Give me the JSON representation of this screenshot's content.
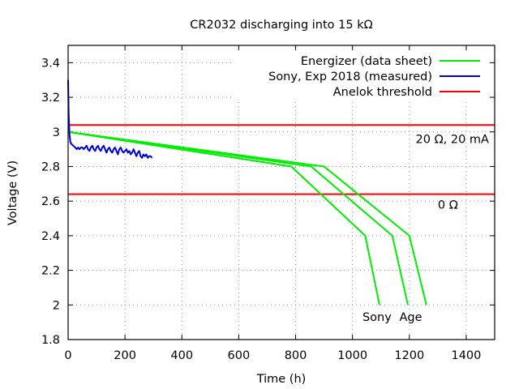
{
  "chart_data": {
    "type": "line",
    "title": "CR2032 discharging into 15 kΩ",
    "xlabel": "Time (h)",
    "ylabel": "Voltage (V)",
    "xlim": [
      0,
      1500
    ],
    "ylim": [
      1.8,
      3.5
    ],
    "xticks": [
      0,
      200,
      400,
      600,
      800,
      1000,
      1200,
      1400
    ],
    "xtick_labels": [
      "0",
      "200",
      "400",
      "600",
      "800",
      "1000",
      "1200",
      "1400"
    ],
    "yticks": [
      1.8,
      2.0,
      2.2,
      2.4,
      2.6,
      2.8,
      3.0,
      3.2,
      3.4
    ],
    "ytick_labels": [
      "1.8",
      "2",
      "2.2",
      "2.4",
      "2.6",
      "2.8",
      "3",
      "3.2",
      "3.4"
    ],
    "grid": true,
    "legend_position": "top-right",
    "series": [
      {
        "name": "Energizer (data sheet)",
        "color": "#00ee00",
        "lines": [
          {
            "x": [
              0,
              785,
              1045,
              1095
            ],
            "y": [
              3.0,
              2.8,
              2.4,
              2.0
            ]
          },
          {
            "x": [
              0,
              855,
              1140,
              1195
            ],
            "y": [
              3.0,
              2.8,
              2.4,
              2.0
            ]
          },
          {
            "x": [
              0,
              900,
              1200,
              1260
            ],
            "y": [
              3.0,
              2.8,
              2.4,
              2.0
            ]
          }
        ]
      },
      {
        "name": "Sony, Exp 2018 (measured)",
        "color": "#0000dd",
        "x": [
          0,
          2,
          5,
          8,
          12,
          18,
          25,
          30,
          35,
          40,
          45,
          50,
          55,
          60,
          65,
          70,
          75,
          80,
          85,
          90,
          95,
          100,
          105,
          110,
          115,
          120,
          125,
          130,
          135,
          140,
          145,
          150,
          155,
          160,
          165,
          170,
          175,
          180,
          185,
          190,
          195,
          200,
          205,
          210,
          215,
          220,
          225,
          230,
          235,
          240,
          245,
          250,
          255,
          260,
          265,
          270,
          275,
          280,
          285,
          290,
          295
        ],
        "y": [
          3.3,
          3.1,
          2.98,
          2.94,
          2.93,
          2.92,
          2.91,
          2.9,
          2.91,
          2.9,
          2.91,
          2.91,
          2.9,
          2.91,
          2.92,
          2.9,
          2.89,
          2.91,
          2.92,
          2.9,
          2.89,
          2.91,
          2.92,
          2.9,
          2.89,
          2.91,
          2.92,
          2.9,
          2.88,
          2.9,
          2.91,
          2.89,
          2.88,
          2.9,
          2.91,
          2.89,
          2.87,
          2.9,
          2.91,
          2.89,
          2.88,
          2.89,
          2.9,
          2.88,
          2.89,
          2.87,
          2.88,
          2.9,
          2.88,
          2.86,
          2.88,
          2.89,
          2.86,
          2.85,
          2.87,
          2.86,
          2.87,
          2.85,
          2.86,
          2.86,
          2.85
        ]
      },
      {
        "name": "Anelok threshold",
        "color": "#ff0000",
        "hlines": [
          3.04,
          2.64
        ]
      }
    ],
    "annotations": [
      {
        "text": "20 Ω, 20 mA",
        "x": 1480,
        "y": 2.96,
        "align": "right"
      },
      {
        "text": "0 Ω",
        "x": 1300,
        "y": 2.58,
        "align": "left"
      },
      {
        "text": "Sony",
        "x": 1035,
        "y": 1.93,
        "align": "left"
      },
      {
        "text": "Age",
        "x": 1165,
        "y": 1.93,
        "align": "left"
      }
    ]
  }
}
